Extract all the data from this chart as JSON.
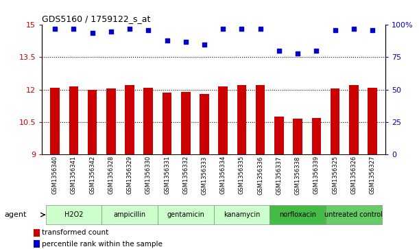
{
  "title": "GDS5160 / 1759122_s_at",
  "samples": [
    "GSM1356340",
    "GSM1356341",
    "GSM1356342",
    "GSM1356328",
    "GSM1356329",
    "GSM1356330",
    "GSM1356331",
    "GSM1356332",
    "GSM1356333",
    "GSM1356334",
    "GSM1356335",
    "GSM1356336",
    "GSM1356337",
    "GSM1356338",
    "GSM1356339",
    "GSM1356325",
    "GSM1356326",
    "GSM1356327"
  ],
  "red_values": [
    12.1,
    12.15,
    12.0,
    12.05,
    12.2,
    12.1,
    11.85,
    11.9,
    11.8,
    12.15,
    12.2,
    12.2,
    10.75,
    10.65,
    10.7,
    12.05,
    12.2,
    12.1
  ],
  "blue_values": [
    97,
    97,
    94,
    95,
    97,
    96,
    88,
    87,
    85,
    97,
    97,
    97,
    80,
    78,
    80,
    96,
    97,
    96
  ],
  "groups": [
    {
      "label": "H2O2",
      "start": 0,
      "end": 3,
      "color": "#ccffcc"
    },
    {
      "label": "ampicillin",
      "start": 3,
      "end": 6,
      "color": "#ccffcc"
    },
    {
      "label": "gentamicin",
      "start": 6,
      "end": 9,
      "color": "#ccffcc"
    },
    {
      "label": "kanamycin",
      "start": 9,
      "end": 12,
      "color": "#ccffcc"
    },
    {
      "label": "norfloxacin",
      "start": 12,
      "end": 15,
      "color": "#44bb44"
    },
    {
      "label": "untreated control",
      "start": 15,
      "end": 18,
      "color": "#66cc66"
    }
  ],
  "ylim_left": [
    9,
    15
  ],
  "ylim_right": [
    0,
    100
  ],
  "yticks_left": [
    9,
    10.5,
    12,
    13.5,
    15
  ],
  "yticks_right": [
    0,
    25,
    50,
    75,
    100
  ],
  "bar_color": "#cc0000",
  "dot_color": "#0000cc",
  "agent_label": "agent",
  "legend_red": "transformed count",
  "legend_blue": "percentile rank within the sample",
  "background_color": "#ffffff",
  "grid_color": "#000000",
  "bar_width": 0.5
}
